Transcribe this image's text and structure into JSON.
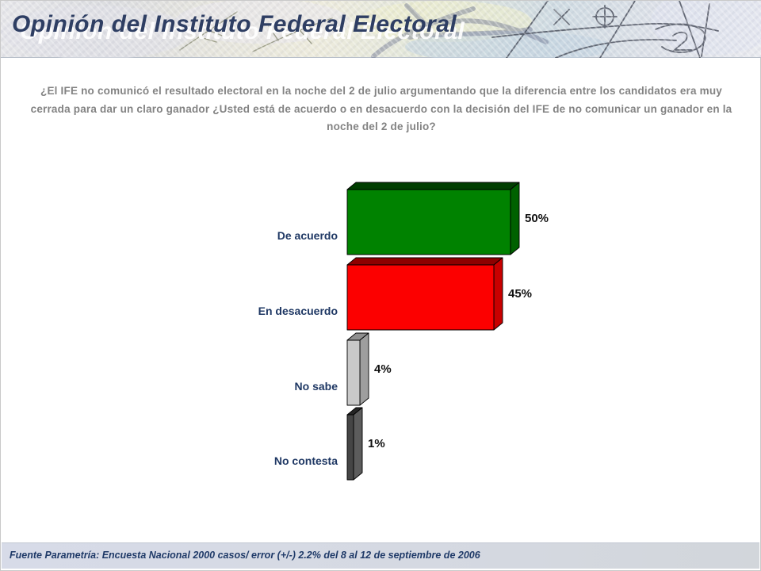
{
  "slide": {
    "title": "Opinión del Instituto Federal Electoral",
    "question": "¿El IFE no comunicó el resultado electoral en la noche del 2 de julio argumentando que la diferencia entre los candidatos era muy cerrada para dar un claro ganador ¿Usted está de acuerdo o en desacuerdo con la decisión del IFE de no comunicar un ganador en la noche del 2 de julio?",
    "footer": "Fuente Parametría: Encuesta Nacional 2000 casos/ error (+/-) 2.2% del 8 al 12 de septiembre de 2006"
  },
  "chart_data": {
    "type": "bar",
    "orientation": "horizontal",
    "title": "Opinión del Instituto Federal Electoral",
    "categories": [
      "De acuerdo",
      "En desacuerdo",
      "No sabe",
      "No contesta"
    ],
    "values": [
      50,
      45,
      4,
      1
    ],
    "value_labels": [
      "50%",
      "45%",
      "4%",
      "1%"
    ],
    "xlabel": "",
    "ylabel": "",
    "xlim": [
      0,
      55
    ],
    "grid": false,
    "legend": false,
    "style": "3d-bars",
    "category_label_color": "#1F3864",
    "value_label_color": "#111111",
    "bar_colors": [
      {
        "name": "green",
        "front": "#008200",
        "top": "#003e00",
        "side": "#006100"
      },
      {
        "name": "red",
        "front": "#fc0000",
        "top": "#8e0000",
        "side": "#c80000"
      },
      {
        "name": "light-gray",
        "front": "#c9c9c9",
        "top": "#8f8f8f",
        "side": "#9e9e9e"
      },
      {
        "name": "dark-gray",
        "front": "#454545",
        "top": "#242424",
        "side": "#5c5c5c"
      }
    ]
  }
}
